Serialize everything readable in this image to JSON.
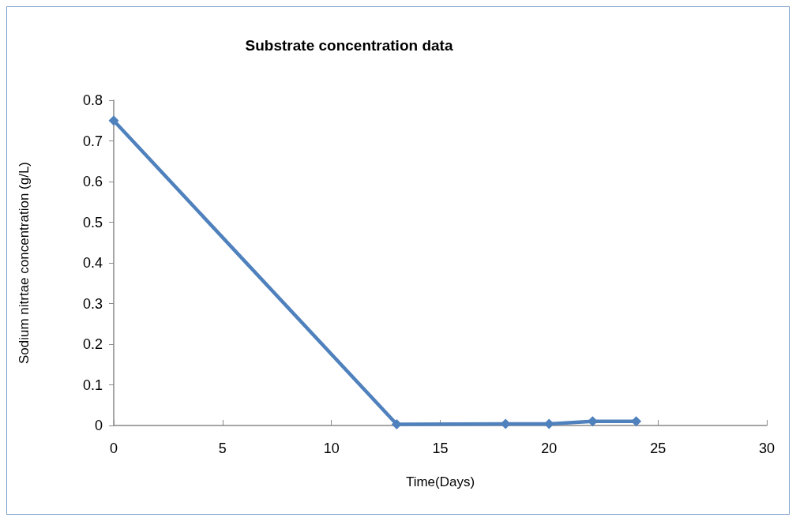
{
  "chart_data": {
    "type": "line",
    "title": "Substrate concentration data",
    "xlabel": "Time(Days)",
    "ylabel": "Sodium nitrtae concentration (g/L)",
    "x": [
      0,
      13,
      18,
      20,
      22,
      24
    ],
    "series": [
      {
        "color": "#4f81bd",
        "values": [
          0.75,
          0.003,
          0.004,
          0.004,
          0.01,
          0.01
        ]
      }
    ],
    "xlim": [
      0,
      30
    ],
    "xticks": [
      0,
      5,
      10,
      15,
      20,
      25,
      30
    ],
    "ylim": [
      0,
      0.8
    ],
    "yticks": [
      0,
      0.1,
      0.2,
      0.3,
      0.4,
      0.5,
      0.6,
      0.7,
      0.8
    ],
    "grid": false,
    "marker": "diamond",
    "line_style": "solid"
  }
}
